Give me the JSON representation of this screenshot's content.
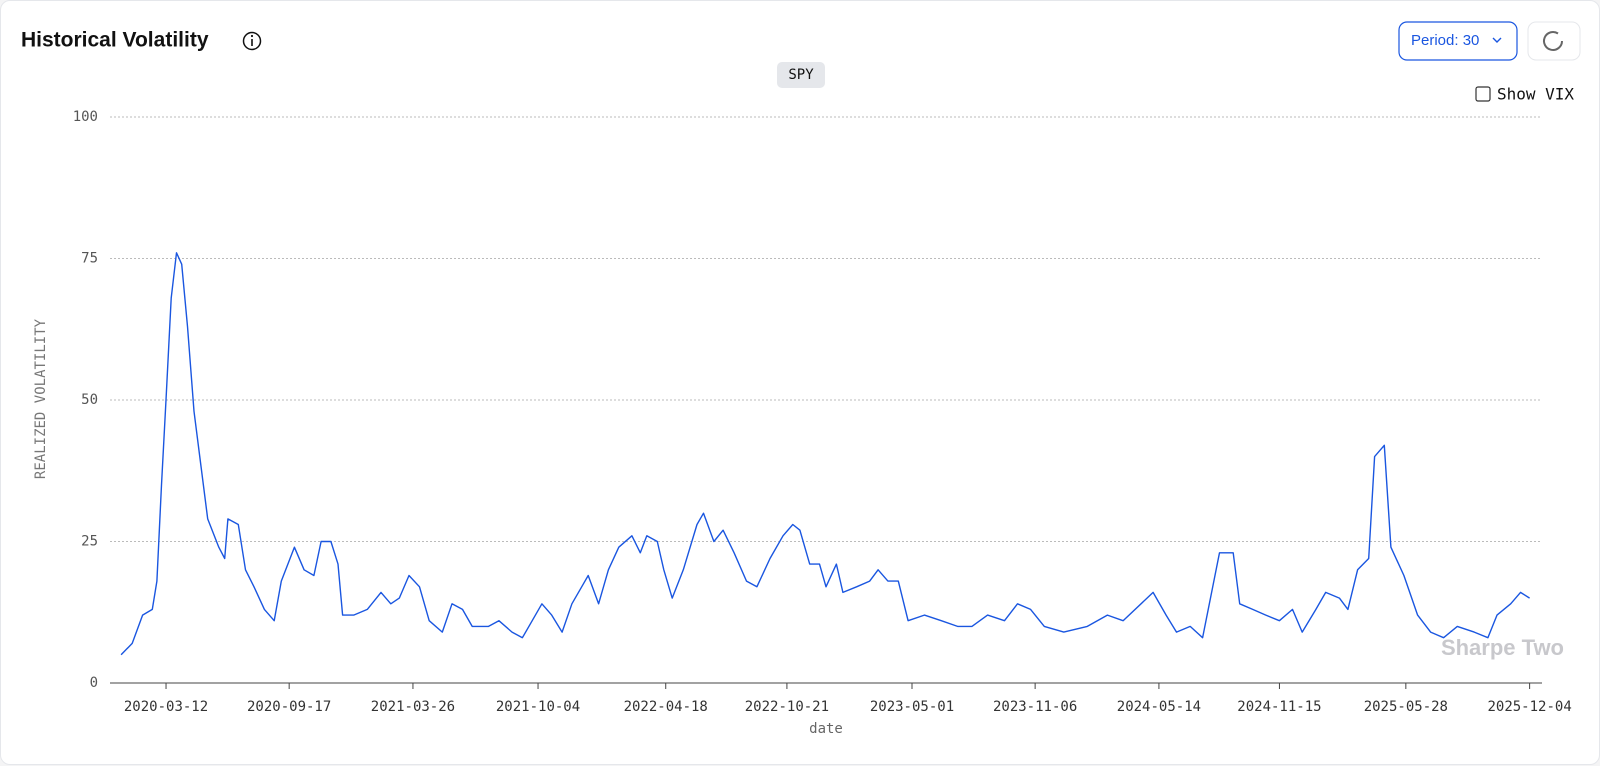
{
  "chart_data": {
    "type": "line",
    "title": "Historical Volatility",
    "period_label": "Period: 30",
    "toggle_label": "Show VIX",
    "watermark": "Sharpe Two",
    "ylabel": "REALIZED VOLATILITY",
    "xlabel": "date",
    "grid": true,
    "ylim": [
      0,
      100
    ],
    "yticks": [
      0,
      25,
      50,
      75,
      100
    ],
    "xlim": [
      "2019-12-17",
      "2025-12-23"
    ],
    "xticks": [
      "2020-03-12",
      "2020-09-17",
      "2021-03-26",
      "2021-10-04",
      "2022-04-18",
      "2022-10-21",
      "2023-05-01",
      "2023-11-06",
      "2024-05-14",
      "2024-11-15",
      "2025-05-28",
      "2025-12-04"
    ],
    "x": [
      "2020-01-03",
      "2020-01-20",
      "2020-02-05",
      "2020-02-20",
      "2020-02-27",
      "2020-03-05",
      "2020-03-12",
      "2020-03-20",
      "2020-03-28",
      "2020-04-05",
      "2020-04-14",
      "2020-04-24",
      "2020-05-05",
      "2020-05-15",
      "2020-06-01",
      "2020-06-10",
      "2020-06-15",
      "2020-07-01",
      "2020-07-12",
      "2020-07-25",
      "2020-08-10",
      "2020-08-25",
      "2020-09-05",
      "2020-09-25",
      "2020-10-10",
      "2020-10-25",
      "2020-11-05",
      "2020-11-20",
      "2020-12-01",
      "2020-12-08",
      "2020-12-25",
      "2021-01-15",
      "2021-02-05",
      "2021-02-20",
      "2021-03-05",
      "2021-03-20",
      "2021-04-05",
      "2021-04-20",
      "2021-05-10",
      "2021-05-25",
      "2021-06-10",
      "2021-06-25",
      "2021-07-20",
      "2021-08-05",
      "2021-08-25",
      "2021-09-10",
      "2021-09-25",
      "2021-10-10",
      "2021-10-25",
      "2021-11-10",
      "2021-11-25",
      "2021-12-10",
      "2021-12-20",
      "2022-01-05",
      "2022-01-20",
      "2022-02-05",
      "2022-02-25",
      "2022-03-10",
      "2022-03-20",
      "2022-04-05",
      "2022-04-15",
      "2022-04-28",
      "2022-05-15",
      "2022-06-05",
      "2022-06-15",
      "2022-07-01",
      "2022-07-15",
      "2022-08-01",
      "2022-08-20",
      "2022-09-05",
      "2022-09-25",
      "2022-10-15",
      "2022-10-30",
      "2022-11-10",
      "2022-11-25",
      "2022-12-10",
      "2022-12-20",
      "2023-01-05",
      "2023-01-15",
      "2023-02-05",
      "2023-02-25",
      "2023-03-10",
      "2023-03-25",
      "2023-04-10",
      "2023-04-25",
      "2023-05-20",
      "2023-06-15",
      "2023-07-10",
      "2023-08-01",
      "2023-08-25",
      "2023-09-20",
      "2023-10-10",
      "2023-10-30",
      "2023-11-20",
      "2023-12-20",
      "2024-01-25",
      "2024-02-25",
      "2024-03-20",
      "2024-05-05",
      "2024-05-25",
      "2024-06-10",
      "2024-07-01",
      "2024-07-20",
      "2024-08-15",
      "2024-09-05",
      "2024-09-15",
      "2024-10-05",
      "2024-10-25",
      "2024-11-15",
      "2024-12-05",
      "2024-12-20",
      "2025-01-10",
      "2025-01-25",
      "2025-02-15",
      "2025-02-28",
      "2025-03-15",
      "2025-04-01",
      "2025-04-10",
      "2025-04-25",
      "2025-05-05",
      "2025-05-25",
      "2025-06-15",
      "2025-07-05",
      "2025-07-25",
      "2025-08-15",
      "2025-09-10",
      "2025-10-01",
      "2025-10-15",
      "2025-11-05",
      "2025-11-20",
      "2025-12-04"
    ],
    "series": [
      {
        "name": "SPY",
        "color": "#1a56e0",
        "values": [
          5,
          7,
          12,
          13,
          18,
          35,
          50,
          68,
          76,
          74,
          63,
          48,
          38,
          29,
          24,
          22,
          29,
          28,
          20,
          17,
          13,
          11,
          18,
          24,
          20,
          19,
          25,
          25,
          21,
          12,
          12,
          13,
          16,
          14,
          15,
          19,
          17,
          11,
          9,
          14,
          13,
          10,
          10,
          11,
          9,
          8,
          11,
          14,
          12,
          9,
          14,
          17,
          19,
          14,
          20,
          24,
          26,
          23,
          26,
          25,
          20,
          15,
          20,
          28,
          30,
          25,
          27,
          23,
          18,
          17,
          22,
          26,
          28,
          27,
          21,
          21,
          17,
          21,
          16,
          17,
          18,
          20,
          18,
          18,
          11,
          12,
          11,
          10,
          10,
          12,
          11,
          14,
          13,
          10,
          9,
          10,
          12,
          11,
          16,
          12,
          9,
          10,
          8,
          23,
          23,
          14,
          13,
          12,
          11,
          13,
          9,
          13,
          16,
          15,
          13,
          20,
          22,
          40,
          42,
          24,
          19,
          12,
          9,
          8,
          10,
          9,
          8,
          12,
          14,
          16,
          15
        ]
      }
    ]
  }
}
